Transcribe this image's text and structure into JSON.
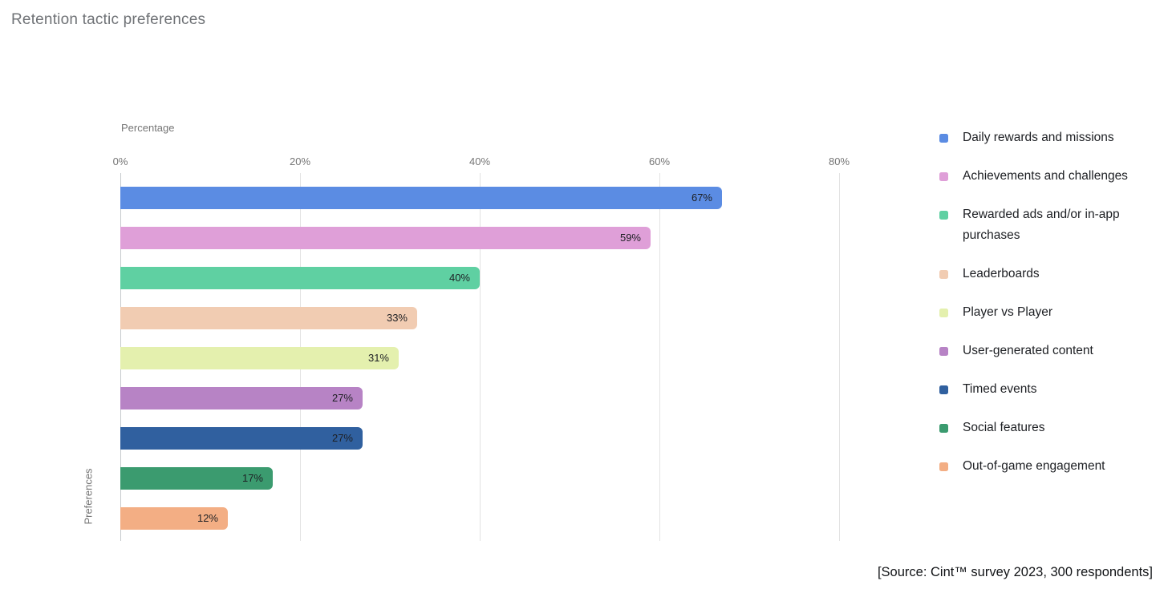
{
  "title": "Retention tactic preferences",
  "source_note": "[Source: Cint™ survey 2023, 300 respondents]",
  "chart_data": {
    "type": "bar",
    "orientation": "horizontal",
    "title": "Retention tactic preferences",
    "xlabel": "Percentage",
    "ylabel": "Preferences",
    "xlim": [
      0,
      80
    ],
    "x_ticks": [
      0,
      20,
      40,
      60,
      80
    ],
    "x_tick_labels": [
      "0%",
      "20%",
      "40%",
      "60%",
      "80%"
    ],
    "grid": true,
    "legend_position": "right",
    "categories": [
      "Daily rewards and missions",
      "Achievements and challenges",
      "Rewarded ads and/or in-app purchases",
      "Leaderboards",
      "Player vs Player",
      "User-generated content",
      "Timed events",
      "Social features",
      "Out-of-game engagement"
    ],
    "values": [
      67,
      59,
      40,
      33,
      31,
      27,
      27,
      17,
      12
    ],
    "value_labels": [
      "67%",
      "59%",
      "40%",
      "33%",
      "31%",
      "27%",
      "27%",
      "17%",
      "12%"
    ],
    "colors": [
      "#5b8ce3",
      "#df9fd8",
      "#5fd0a2",
      "#f1ccb2",
      "#e4f0ae",
      "#b783c5",
      "#30609f",
      "#3b9b6f",
      "#f3ae84"
    ]
  },
  "layout_colors": {
    "gridline": "#e3e3e3",
    "zero_axis": "#c6c9cd",
    "tick_text": "#757575",
    "title_text": "#6f7276",
    "label_text": "#1d1f23"
  }
}
